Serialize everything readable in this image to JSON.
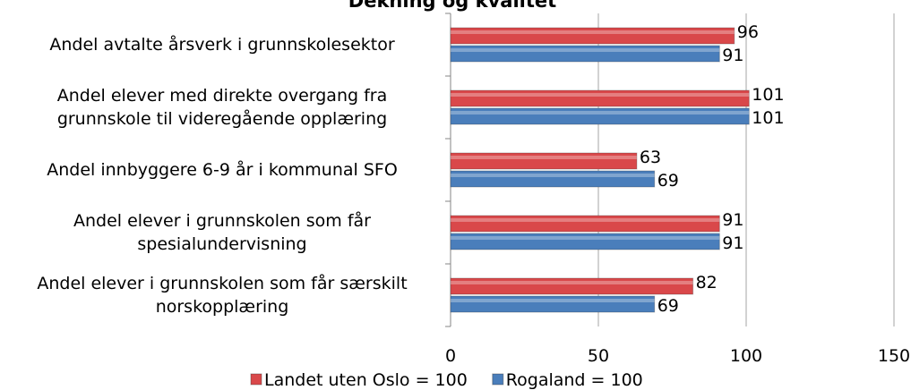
{
  "chart_data": {
    "type": "barh",
    "title": "Dekning og kvalitet",
    "categories": [
      "Andel avtalte årsverk i grunnskolesektor",
      "Andel elever med direkte overgang fra\ngrunnskole til videregående opplæring",
      "Andel innbyggere 6-9 år i kommunal SFO",
      "Andel elever i grunnskolen som får\nspesialundervisning",
      "Andel elever i grunnskolen som får særskilt\nnorskopplæring"
    ],
    "series": [
      {
        "name": "Landet uten Oslo = 100",
        "color": "#d9484a",
        "values": [
          96,
          101,
          63,
          91,
          82
        ]
      },
      {
        "name": "Rogaland = 100",
        "color": "#4a7ebb",
        "values": [
          91,
          101,
          69,
          91,
          69
        ]
      }
    ],
    "xlim": [
      0,
      150
    ],
    "xticks": [
      0,
      50,
      100,
      150
    ],
    "grid": true,
    "legend": "bottom"
  }
}
